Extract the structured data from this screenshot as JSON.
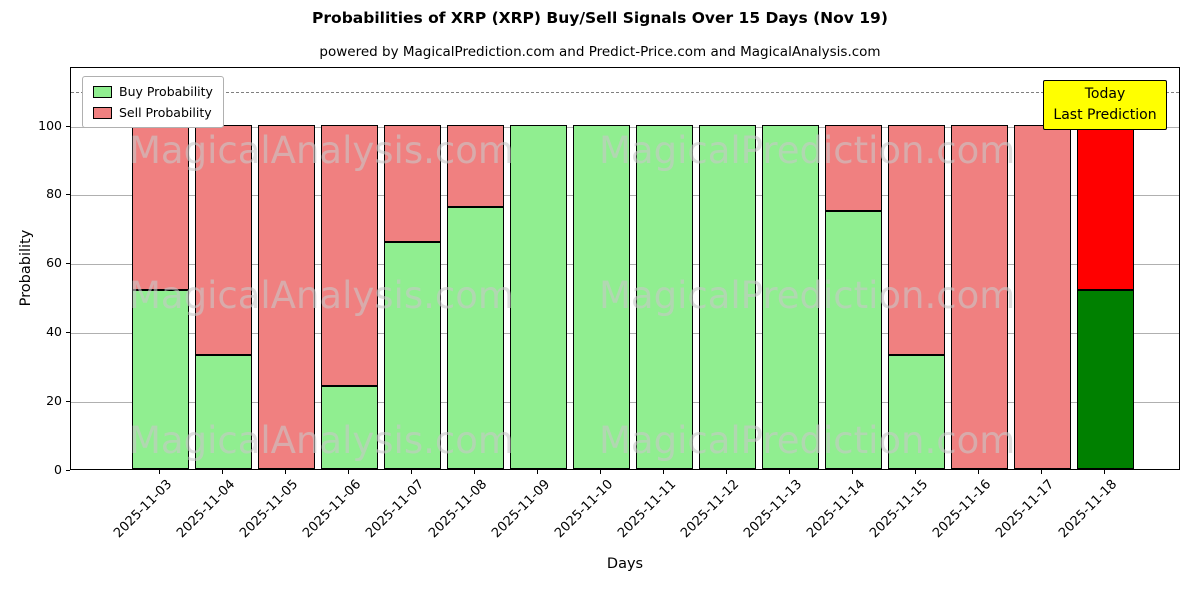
{
  "chart_data": {
    "type": "bar",
    "stacked": true,
    "title": "Probabilities of XRP (XRP) Buy/Sell Signals Over 15 Days (Nov 19)",
    "subtitle": "powered by MagicalPrediction.com and Predict-Price.com and MagicalAnalysis.com",
    "xlabel": "Days",
    "ylabel": "Probability",
    "ylim": [
      0,
      117
    ],
    "yticks": [
      0,
      20,
      40,
      60,
      80,
      100
    ],
    "dashed_line_y": 110,
    "grid": true,
    "legend_position": "upper-left",
    "categories": [
      "2025-11-03",
      "2025-11-04",
      "2025-11-05",
      "2025-11-06",
      "2025-11-07",
      "2025-11-08",
      "2025-11-09",
      "2025-11-10",
      "2025-11-11",
      "2025-11-12",
      "2025-11-13",
      "2025-11-14",
      "2025-11-15",
      "2025-11-16",
      "2025-11-17",
      "2025-11-18"
    ],
    "series": [
      {
        "name": "Buy Probability",
        "color": "#90EE90",
        "values": [
          52,
          33,
          0,
          24,
          66,
          76,
          100,
          100,
          100,
          100,
          100,
          75,
          33,
          0,
          0,
          52
        ]
      },
      {
        "name": "Sell Probability",
        "color": "#F08080",
        "values": [
          48,
          67,
          100,
          76,
          34,
          24,
          0,
          0,
          0,
          0,
          0,
          25,
          67,
          100,
          100,
          48
        ]
      }
    ],
    "today_index": 15,
    "today_colors": {
      "buy": "#008000",
      "sell": "#FF0000"
    },
    "annotation_box": {
      "lines": [
        "Today",
        "Last Prediction"
      ],
      "bg": "#FFFF00"
    },
    "watermarks": [
      "MagicalAnalysis.com",
      "MagicalPrediction.com"
    ]
  }
}
